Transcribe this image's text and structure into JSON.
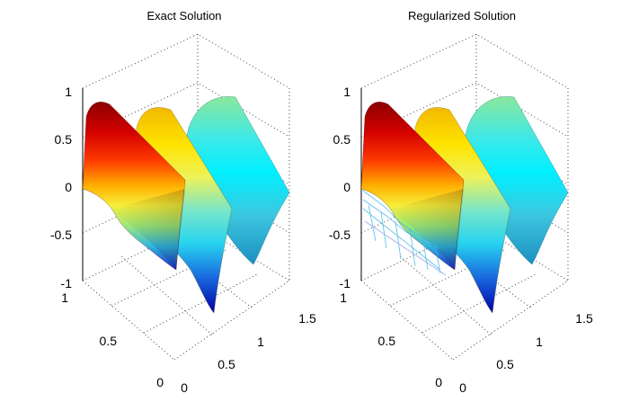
{
  "chart_data": [
    {
      "type": "surface",
      "title": "Exact Solution",
      "xlabel": "",
      "ylabel": "",
      "zlabel": "",
      "xlim": [
        0,
        1.5
      ],
      "ylim": [
        0,
        1
      ],
      "zlim": [
        -1,
        1
      ],
      "x_ticks": [
        "0",
        "0.5",
        "1",
        "1.5"
      ],
      "y_ticks": [
        "0",
        "0.5",
        "1"
      ],
      "z_ticks": [
        "-1",
        "-0.5",
        "0",
        "0.5",
        "1"
      ],
      "colormap": "jet",
      "grid": true,
      "sheets": [
        {
          "x": 0.15,
          "peak": 0.92,
          "trough": -0.55,
          "color_top": "#8b0000",
          "color_bottom": "#1428c8"
        },
        {
          "x": 0.55,
          "peak": 0.7,
          "trough": -0.95,
          "color_top": "#f0e000",
          "color_bottom": "#0000b0"
        },
        {
          "x": 1.0,
          "peak": 0.55,
          "trough": -0.65,
          "color_top": "#7ce6a0",
          "color_bottom": "#2aa0c8"
        }
      ]
    },
    {
      "type": "surface",
      "title": "Regularized Solution",
      "xlabel": "",
      "ylabel": "",
      "zlabel": "",
      "xlim": [
        0,
        1.5
      ],
      "ylim": [
        0,
        1
      ],
      "zlim": [
        -1,
        1
      ],
      "x_ticks": [
        "0",
        "0.5",
        "1",
        "1.5"
      ],
      "y_ticks": [
        "0",
        "0.5",
        "1"
      ],
      "z_ticks": [
        "-1",
        "-0.5",
        "0",
        "0.5",
        "1"
      ],
      "colormap": "jet",
      "grid": true,
      "sheets": [
        {
          "x": 0.15,
          "peak": 0.92,
          "trough": -0.55,
          "color_top": "#8b0000",
          "color_bottom": "#1428c8"
        },
        {
          "x": 0.55,
          "peak": 0.7,
          "trough": -0.95,
          "color_top": "#f0e000",
          "color_bottom": "#0000b0"
        },
        {
          "x": 1.0,
          "peak": 0.55,
          "trough": -0.65,
          "color_top": "#7ce6a0",
          "color_bottom": "#2aa0c8"
        }
      ]
    }
  ]
}
